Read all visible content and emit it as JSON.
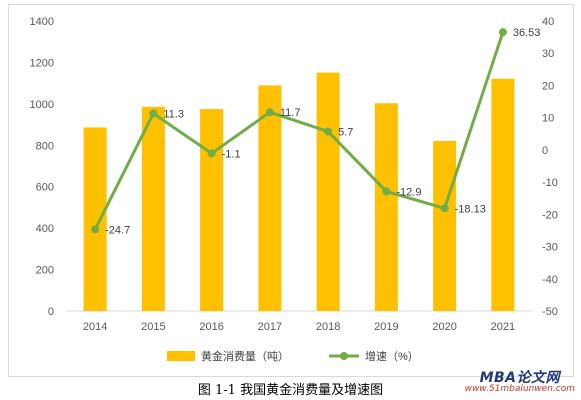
{
  "caption": "图 1-1 我国黄金消费量及增速图",
  "watermark": {
    "brand": "MBA论文网",
    "url": "www.51mbalunwen.com"
  },
  "chart_data": {
    "type": "bar",
    "categories": [
      "2014",
      "2015",
      "2016",
      "2017",
      "2018",
      "2019",
      "2020",
      "2021"
    ],
    "series": [
      {
        "name": "黄金消费量（吨）",
        "type": "bar",
        "axis": "left",
        "color": "#FFC000",
        "values": [
          886,
          986,
          975,
          1089,
          1151,
          1003,
          821,
          1121
        ]
      },
      {
        "name": "增速（%）",
        "type": "line",
        "axis": "right",
        "color": "#70AD47",
        "values": [
          -24.7,
          11.3,
          -1.1,
          11.7,
          5.7,
          -12.9,
          -18.13,
          36.53
        ],
        "labels": [
          "-24.7",
          "11.3",
          "-1.1",
          "11.7",
          "5.7",
          "-12.9",
          "-18.13",
          "36.53"
        ]
      }
    ],
    "y_left": {
      "ylim": [
        0,
        1400
      ],
      "ticks": [
        "0",
        "200",
        "400",
        "600",
        "800",
        "1000",
        "1200",
        "1400"
      ]
    },
    "y_right": {
      "ylim": [
        -50,
        40
      ],
      "ticks": [
        "-50",
        "-40",
        "-30",
        "-20",
        "-10",
        "0",
        "10",
        "20",
        "30",
        "40"
      ]
    },
    "grid": false,
    "legend": "bottom"
  }
}
